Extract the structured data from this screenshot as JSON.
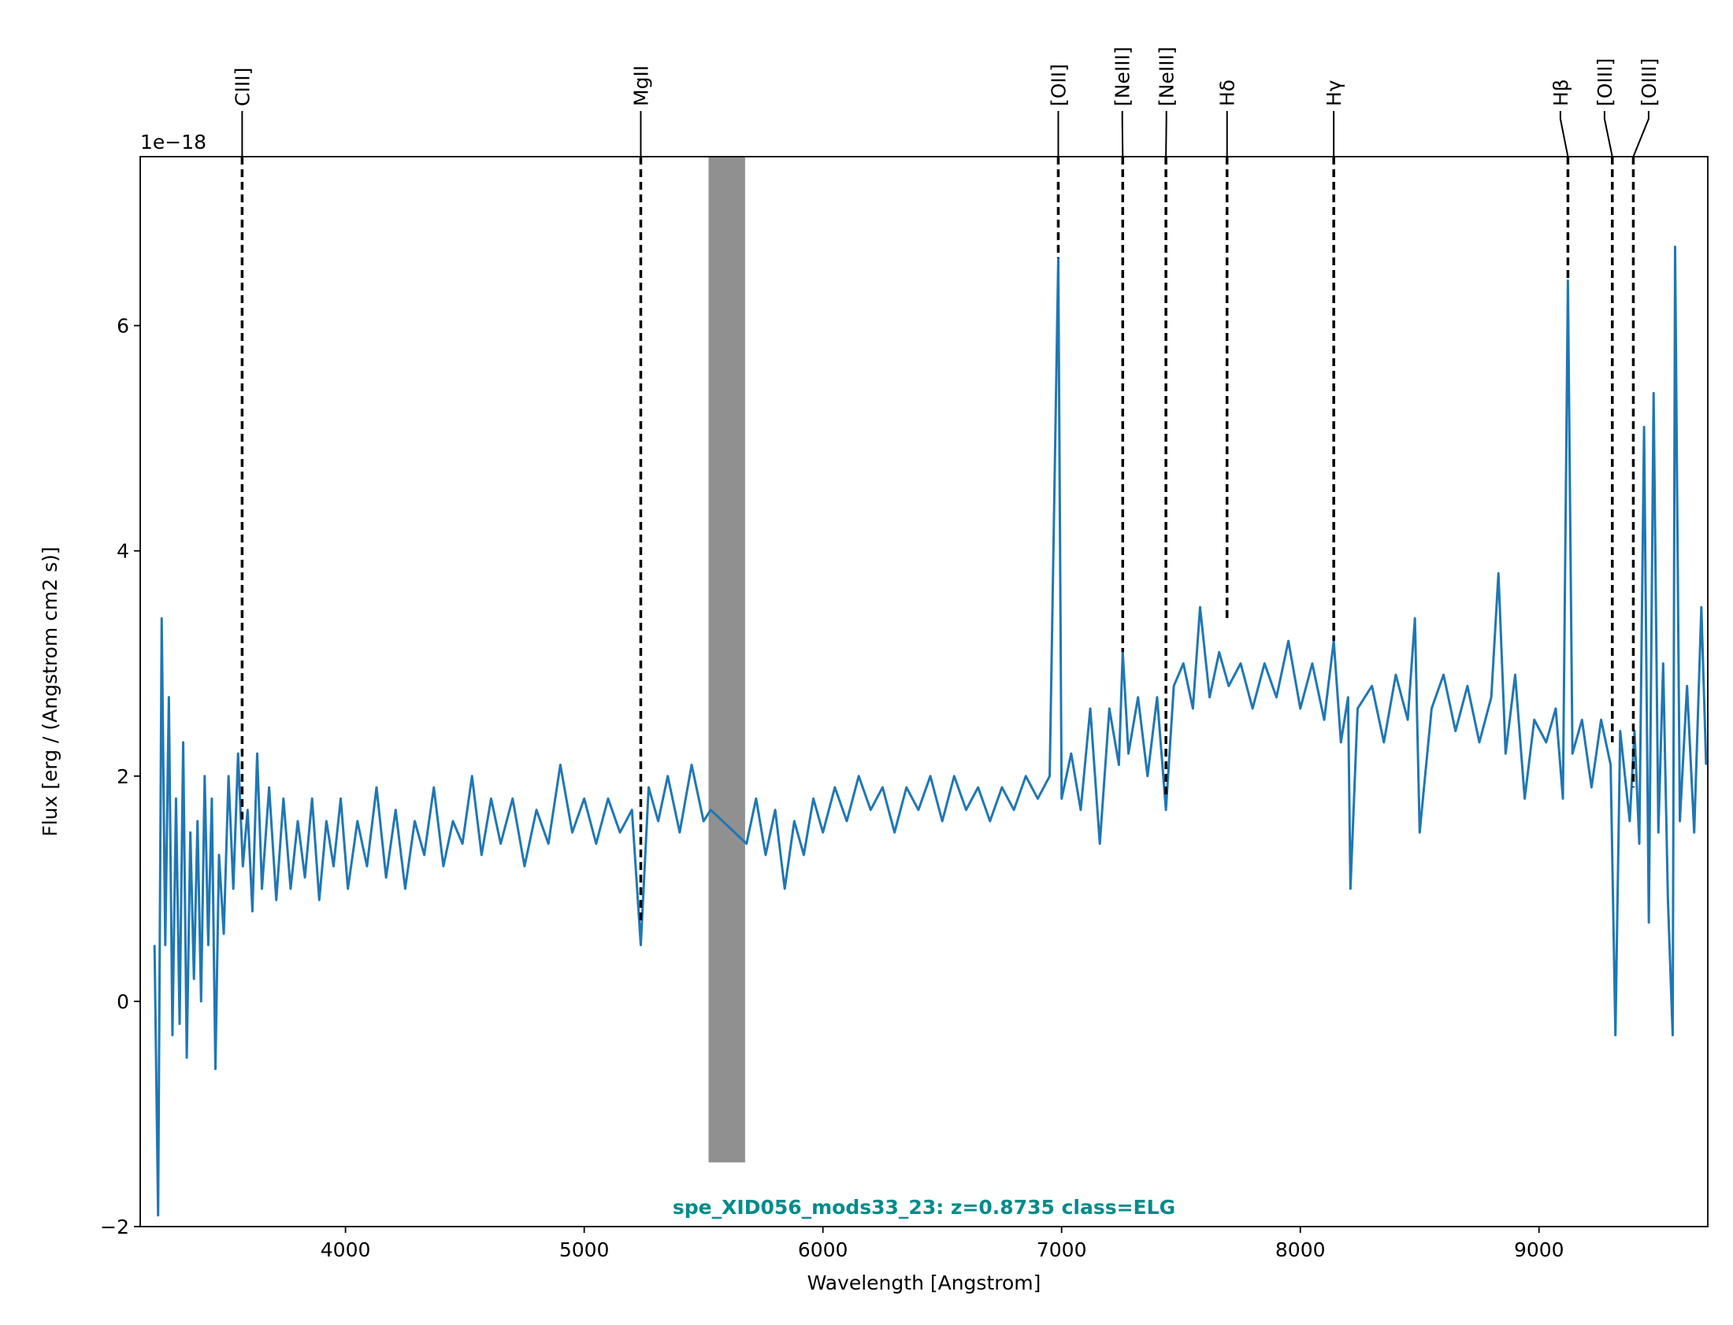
{
  "chart_data": {
    "type": "line",
    "title": "spe_XID056_mods33_23: z=0.8735 class=ELG",
    "title_color": "#008b8b",
    "x_label": "Wavelength [Angstrom]",
    "y_label": "Flux [erg / (Angstrom cm2 s)]",
    "y_offset_label": "1e−18",
    "xlim": [
      3140,
      9707
    ],
    "ylim": [
      -2,
      7.5
    ],
    "xticks": [
      4000,
      5000,
      6000,
      7000,
      8000,
      9000
    ],
    "yticks": [
      -2,
      0,
      2,
      4,
      6
    ],
    "grid": false,
    "series": [
      {
        "color": "#1f77b4",
        "x": [
          3200,
          3215,
          3230,
          3245,
          3260,
          3275,
          3290,
          3305,
          3320,
          3335,
          3350,
          3365,
          3380,
          3395,
          3410,
          3425,
          3440,
          3455,
          3470,
          3490,
          3510,
          3530,
          3550,
          3570,
          3590,
          3610,
          3630,
          3650,
          3680,
          3710,
          3740,
          3770,
          3800,
          3830,
          3860,
          3890,
          3920,
          3950,
          3980,
          4010,
          4050,
          4090,
          4130,
          4170,
          4210,
          4250,
          4290,
          4330,
          4370,
          4410,
          4450,
          4490,
          4530,
          4570,
          4610,
          4650,
          4700,
          4750,
          4800,
          4850,
          4900,
          4950,
          5000,
          5050,
          5100,
          5150,
          5200,
          5237,
          5270,
          5310,
          5350,
          5400,
          5450,
          5500,
          5530,
          5680,
          5720,
          5760,
          5800,
          5840,
          5880,
          5920,
          5960,
          6000,
          6050,
          6100,
          6150,
          6200,
          6250,
          6300,
          6350,
          6400,
          6450,
          6500,
          6550,
          6600,
          6650,
          6700,
          6750,
          6800,
          6850,
          6900,
          6950,
          6986,
          7000,
          7040,
          7080,
          7120,
          7160,
          7200,
          7240,
          7256,
          7280,
          7320,
          7360,
          7400,
          7437,
          7470,
          7510,
          7550,
          7580,
          7620,
          7660,
          7700,
          7750,
          7800,
          7850,
          7900,
          7950,
          8000,
          8050,
          8100,
          8140,
          8170,
          8200,
          8210,
          8240,
          8300,
          8350,
          8400,
          8450,
          8480,
          8500,
          8550,
          8600,
          8650,
          8700,
          8750,
          8800,
          8830,
          8860,
          8900,
          8940,
          8980,
          9030,
          9070,
          9100,
          9121,
          9140,
          9180,
          9220,
          9260,
          9300,
          9320,
          9340,
          9380,
          9400,
          9420,
          9440,
          9460,
          9480,
          9500,
          9520,
          9540,
          9560,
          9570,
          9590,
          9620,
          9650,
          9680,
          9700
        ],
        "values": [
          0.5,
          -1.9,
          3.4,
          0.5,
          2.7,
          -0.3,
          1.8,
          -0.2,
          2.3,
          -0.5,
          1.5,
          0.2,
          1.6,
          0.0,
          2.0,
          0.5,
          1.8,
          -0.6,
          1.3,
          0.6,
          2.0,
          1.0,
          2.2,
          1.2,
          1.7,
          0.8,
          2.2,
          1.0,
          1.9,
          0.9,
          1.8,
          1.0,
          1.6,
          1.1,
          1.8,
          0.9,
          1.6,
          1.2,
          1.8,
          1.0,
          1.6,
          1.2,
          1.9,
          1.1,
          1.7,
          1.0,
          1.6,
          1.3,
          1.9,
          1.2,
          1.6,
          1.4,
          2.0,
          1.3,
          1.8,
          1.4,
          1.8,
          1.2,
          1.7,
          1.4,
          2.1,
          1.5,
          1.8,
          1.4,
          1.8,
          1.5,
          1.7,
          0.5,
          1.9,
          1.6,
          2.0,
          1.5,
          2.1,
          1.6,
          1.7,
          1.4,
          1.8,
          1.3,
          1.7,
          1.0,
          1.6,
          1.3,
          1.8,
          1.5,
          1.9,
          1.6,
          2.0,
          1.7,
          1.9,
          1.5,
          1.9,
          1.7,
          2.0,
          1.6,
          2.0,
          1.7,
          1.9,
          1.6,
          1.9,
          1.7,
          2.0,
          1.8,
          2.0,
          6.6,
          1.8,
          2.2,
          1.7,
          2.6,
          1.4,
          2.6,
          2.1,
          3.1,
          2.2,
          2.7,
          2.0,
          2.7,
          1.7,
          2.8,
          3.0,
          2.6,
          3.5,
          2.7,
          3.1,
          2.8,
          3.0,
          2.6,
          3.0,
          2.7,
          3.2,
          2.6,
          3.0,
          2.5,
          3.2,
          2.3,
          2.7,
          1.0,
          2.6,
          2.8,
          2.3,
          2.9,
          2.5,
          3.4,
          1.5,
          2.6,
          2.9,
          2.4,
          2.8,
          2.3,
          2.7,
          3.8,
          2.2,
          2.9,
          1.8,
          2.5,
          2.3,
          2.6,
          1.8,
          6.4,
          2.2,
          2.5,
          1.9,
          2.5,
          2.1,
          -0.3,
          2.4,
          1.6,
          2.4,
          1.4,
          5.1,
          0.7,
          5.4,
          1.5,
          3.0,
          0.9,
          -0.3,
          6.7,
          1.6,
          2.8,
          1.5,
          3.5,
          2.1
        ]
      }
    ],
    "band": {
      "xmin": 5521,
      "xmax": 5674,
      "ymin": -1.43,
      "ymax": 7.5,
      "color": "#909090"
    },
    "lines": [
      {
        "label": "CIII]",
        "x": 3567,
        "y_end": 1.6
      },
      {
        "label": "MgII",
        "x": 5237,
        "y_end": 0.7
      },
      {
        "label": "[OII]",
        "x": 6986,
        "y_end": 6.6
      },
      {
        "label": "[NeIII]",
        "x": 7256,
        "y_end": 3.1
      },
      {
        "label": "[NeIII]",
        "x": 7437,
        "y_end": 1.8
      },
      {
        "label": "Hδ",
        "x": 7693,
        "y_end": 3.4
      },
      {
        "label": "Hγ",
        "x": 8140,
        "y_end": 3.2
      },
      {
        "label": "Hβ",
        "x": 9121,
        "y_end": 6.4
      },
      {
        "label": "[OIII]",
        "x": 9307,
        "y_end": 2.3
      },
      {
        "label": "[OIII]",
        "x": 9395,
        "y_end": 1.9
      }
    ]
  }
}
